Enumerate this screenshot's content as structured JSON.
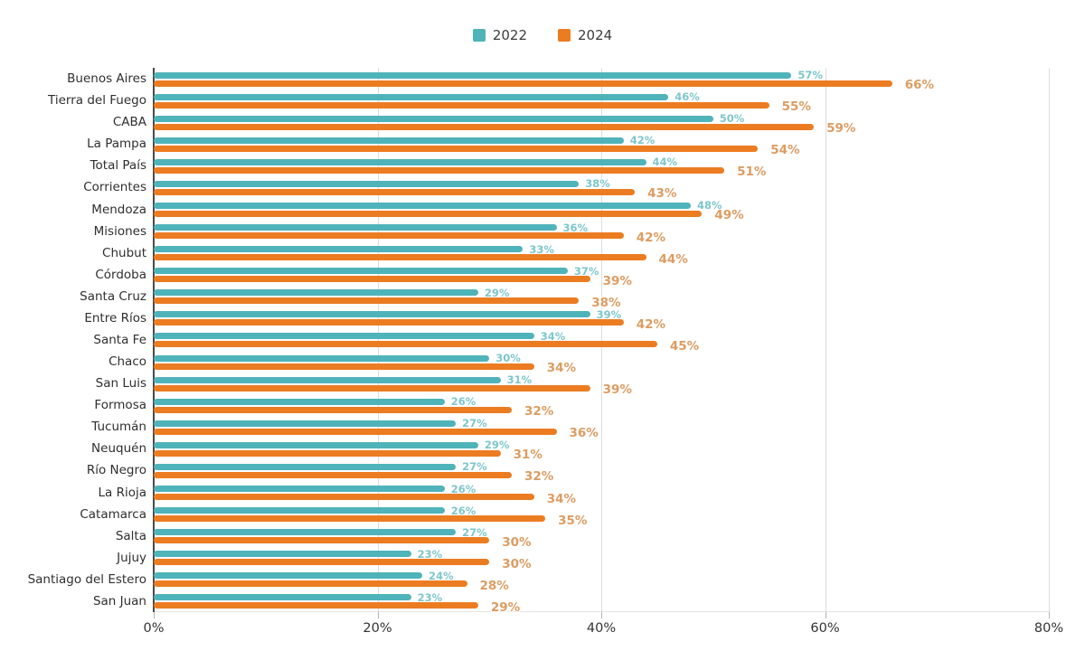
{
  "colors": {
    "series_2022": "#4FB3BA",
    "series_2024": "#EC7C21",
    "label_2022": "#7EC6CC",
    "label_2024": "#DD9C62",
    "axis_text": "#333333",
    "gridline": "#DCDCDC",
    "axis_line": "#4A4A4A",
    "background": "#FFFFFF"
  },
  "legend": {
    "items": [
      {
        "label": "2022",
        "color": "#4FB3BA"
      },
      {
        "label": "2024",
        "color": "#EC7C21"
      }
    ]
  },
  "chart_data": {
    "type": "bar",
    "orientation": "horizontal",
    "title": "",
    "xlabel": "",
    "ylabel": "",
    "xlim": [
      0,
      80
    ],
    "grid": true,
    "legend_position": "top",
    "value_suffix": "%",
    "x_tick_labels": [
      "0%",
      "20%",
      "40%",
      "60%",
      "80%"
    ],
    "x_tick_values": [
      0,
      20,
      40,
      60,
      80
    ],
    "categories": [
      "Buenos Aires",
      "Tierra del Fuego",
      "CABA",
      "La Pampa",
      "Total País",
      "Corrientes",
      "Mendoza",
      "Misiones",
      "Chubut",
      "Córdoba",
      "Santa Cruz",
      "Entre Ríos",
      "Santa Fe",
      "Chaco",
      "San Luis",
      "Formosa",
      "Tucumán",
      "Neuquén",
      "Río Negro",
      "La Rioja",
      "Catamarca",
      "Salta",
      "Jujuy",
      "Santiago del Estero",
      "San Juan"
    ],
    "series": [
      {
        "name": "2022",
        "color": "#4FB3BA",
        "label_color": "#7EC6CC",
        "values": [
          57,
          46,
          50,
          42,
          44,
          38,
          48,
          36,
          33,
          37,
          29,
          39,
          34,
          30,
          31,
          26,
          27,
          29,
          27,
          26,
          26,
          27,
          23,
          24,
          23
        ]
      },
      {
        "name": "2024",
        "color": "#EC7C21",
        "label_color": "#DD9C62",
        "values": [
          66,
          55,
          59,
          54,
          51,
          43,
          49,
          42,
          44,
          39,
          38,
          42,
          45,
          34,
          39,
          32,
          36,
          31,
          32,
          34,
          35,
          30,
          30,
          28,
          29
        ]
      }
    ]
  }
}
